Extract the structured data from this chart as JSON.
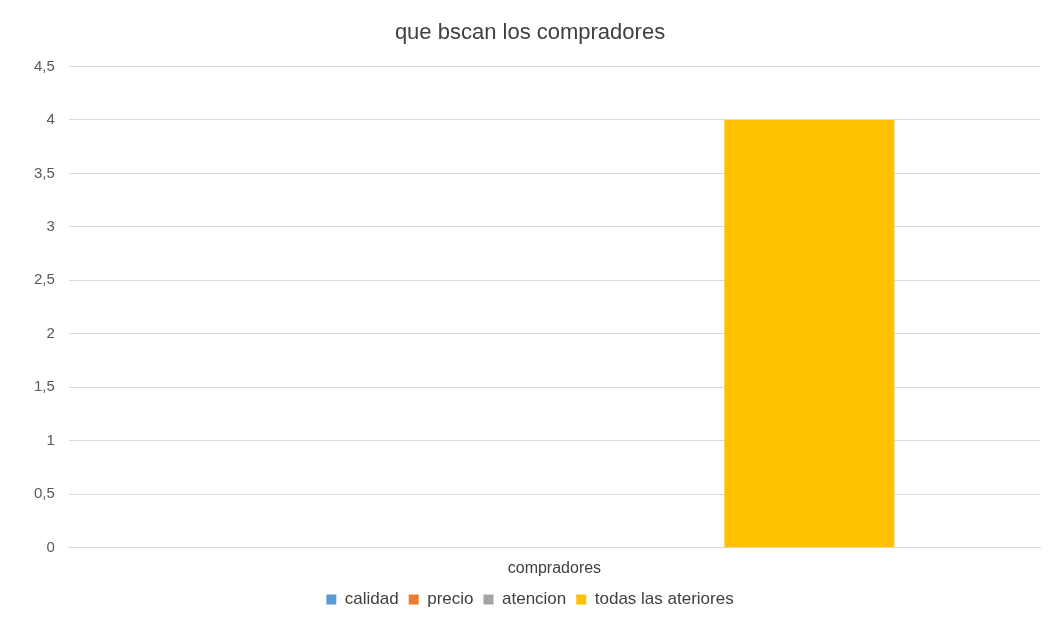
{
  "chart_data": {
    "type": "bar",
    "title": "que bscan los compradores",
    "categories": [
      "compradores"
    ],
    "series": [
      {
        "name": "calidad",
        "color": "#5b9bd5",
        "values": [
          0
        ]
      },
      {
        "name": "precio",
        "color": "#ed7d31",
        "values": [
          0
        ]
      },
      {
        "name": "atencion",
        "color": "#a5a5a5",
        "values": [
          0
        ]
      },
      {
        "name": "todas las ateriores",
        "color": "#ffc000",
        "values": [
          4
        ]
      }
    ],
    "ylim": [
      0,
      4.5
    ],
    "yticks": [
      0,
      {
        "value": 0.5,
        "label": "0,5"
      },
      1,
      {
        "value": 1.5,
        "label": "1,5"
      },
      2,
      {
        "value": 2.5,
        "label": "2,5"
      },
      3,
      {
        "value": 3.5,
        "label": "3,5"
      },
      4,
      {
        "value": 4.5,
        "label": "4,5"
      }
    ],
    "grid": "y",
    "legend": "bottom"
  }
}
